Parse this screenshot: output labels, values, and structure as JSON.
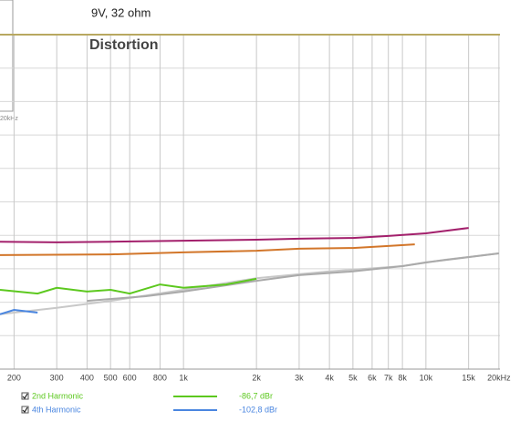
{
  "chart_data": {
    "type": "line",
    "title": "9V, 32 ohm",
    "plot_label": "Distortion",
    "side_label": "20kHz",
    "xscale": "log",
    "xlim": [
      175,
      20200
    ],
    "xticks": [
      200,
      300,
      400,
      500,
      600,
      800,
      {
        "value": 1000,
        "label": "1k"
      },
      {
        "value": 2000,
        "label": "2k"
      },
      {
        "value": 3000,
        "label": "3k"
      },
      {
        "value": 4000,
        "label": "4k"
      },
      {
        "value": 5000,
        "label": "5k"
      },
      {
        "value": 6000,
        "label": "6k"
      },
      {
        "value": 7000,
        "label": "7k"
      },
      {
        "value": 8000,
        "label": "8k"
      },
      {
        "value": 10000,
        "label": "10k"
      },
      {
        "value": 15000,
        "label": "15k"
      },
      {
        "value": 20000,
        "label": "20kHz"
      }
    ],
    "ylim": [
      -140,
      -40
    ],
    "yticks": [
      -140,
      -130,
      -120,
      -110,
      -100,
      -90,
      -80,
      -70,
      -60,
      -50,
      -40
    ],
    "grid": true,
    "series": [
      {
        "color": "#a3206c",
        "x": [
          175,
          300,
          500,
          1000,
          2000,
          3000,
          5000,
          7000,
          10000,
          15000
        ],
        "values": [
          -101.9,
          -102.1,
          -101.9,
          -101.6,
          -101.3,
          -101.0,
          -100.8,
          -100.2,
          -99.4,
          -97.8
        ]
      },
      {
        "color": "#d2762a",
        "x": [
          175,
          500,
          1000,
          2000,
          3000,
          5000,
          7000,
          9000
        ],
        "values": [
          -105.9,
          -105.7,
          -105.1,
          -104.6,
          -104.0,
          -103.8,
          -103.2,
          -102.7
        ]
      },
      {
        "color": "#c8c8c8",
        "x": [
          175,
          300,
          500,
          1000,
          2000,
          4000,
          8000,
          12000,
          20000
        ],
        "values": [
          -123.6,
          -121.7,
          -119.6,
          -116.3,
          -112.8,
          -110.8,
          -109.2,
          -107.3,
          -105.4
        ]
      },
      {
        "color": "#aaaaaa",
        "x": [
          400,
          700,
          1000,
          2000,
          3000,
          5000,
          8000,
          10000,
          15000,
          20000
        ],
        "values": [
          -119.6,
          -118.2,
          -116.8,
          -113.6,
          -111.9,
          -110.8,
          -109.2,
          -108.1,
          -106.5,
          -105.4
        ]
      },
      {
        "name": "2nd Harmonic",
        "readout": "-86,7 dBr",
        "color": "#5cc81e",
        "x": [
          175,
          250,
          300,
          400,
          500,
          600,
          800,
          1000,
          1500,
          2000
        ],
        "values": [
          -116.3,
          -117.4,
          -115.7,
          -116.8,
          -116.3,
          -117.4,
          -114.7,
          -115.7,
          -114.7,
          -113.0
        ]
      },
      {
        "name": "4th Harmonic",
        "readout": "-102,8 dBr",
        "color": "#4a86e0",
        "x": [
          175,
          200,
          250
        ],
        "values": [
          -123.6,
          -122.3,
          -123.1
        ]
      }
    ]
  }
}
